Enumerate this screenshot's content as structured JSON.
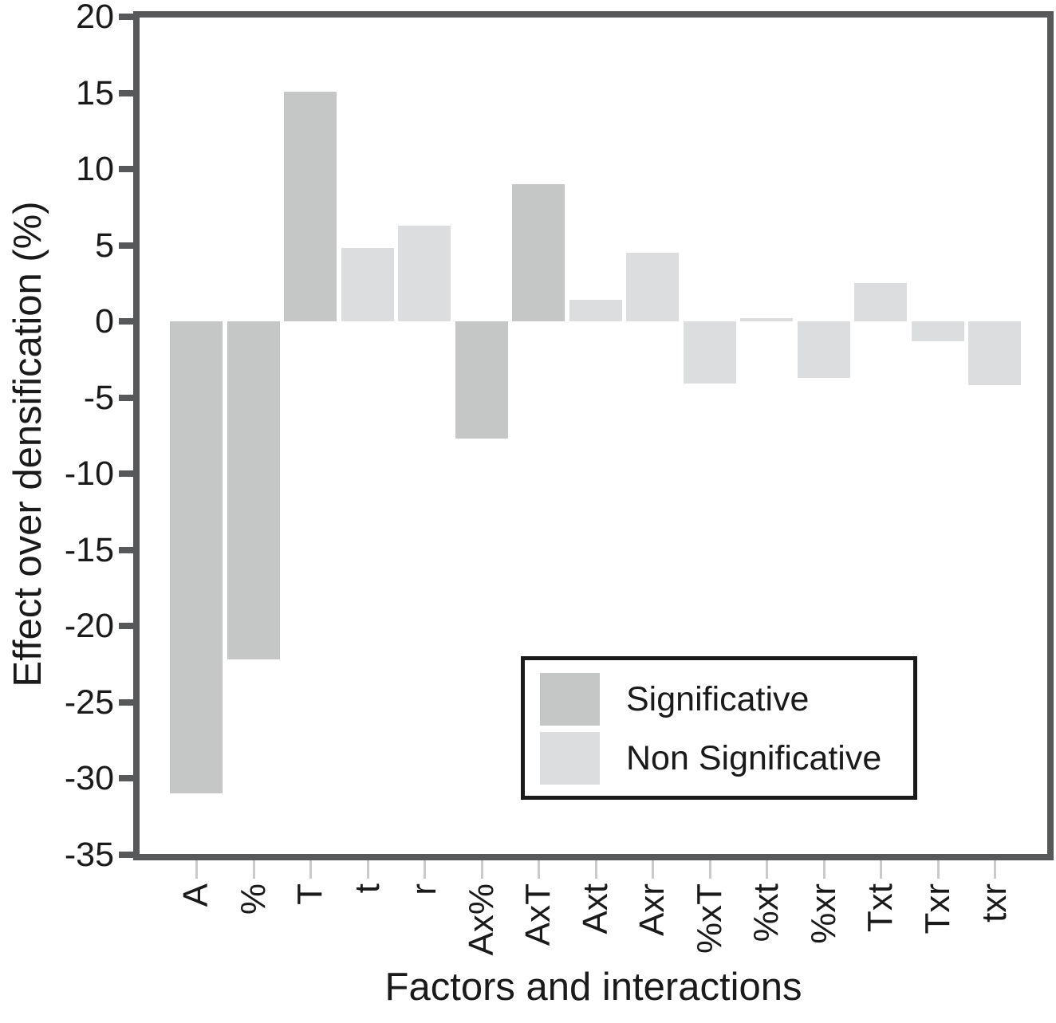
{
  "figure": {
    "y_axis_title": "Effect over densification (%)",
    "x_axis_title": "Factors and interactions",
    "legend": [
      {
        "key": "significative",
        "label": "Significative",
        "color": "#c5c6c6"
      },
      {
        "key": "non_significative",
        "label": "Non Significative",
        "color": "#dcddde"
      }
    ]
  },
  "chart_data": {
    "type": "bar",
    "title": "",
    "xlabel": "Factors and interactions",
    "ylabel": "Effect over densification (%)",
    "ylim": [
      -35,
      20
    ],
    "yticks": [
      20,
      15,
      10,
      5,
      0,
      -5,
      -10,
      -15,
      -20,
      -25,
      -30,
      -35
    ],
    "grid": false,
    "legend_position": "lower-right",
    "categories": [
      "A",
      "%",
      "T",
      "t",
      "r",
      "Ax%",
      "AxT",
      "Axt",
      "Axr",
      "%xT",
      "%xt",
      "%xr",
      "Txt",
      "Txr",
      "txr"
    ],
    "values": [
      -31.0,
      -22.2,
      15.1,
      4.8,
      6.3,
      -7.7,
      9.0,
      1.4,
      4.5,
      -4.1,
      0.2,
      -3.7,
      2.5,
      -1.3,
      -4.2
    ],
    "significance": [
      "significative",
      "significative",
      "significative",
      "non_significative",
      "non_significative",
      "significative",
      "significative",
      "non_significative",
      "non_significative",
      "non_significative",
      "non_significative",
      "non_significative",
      "non_significative",
      "non_significative",
      "non_significative"
    ],
    "colors": {
      "significative": "#c5c6c6",
      "non_significative": "#dcddde",
      "axis": "#57585a",
      "minor_tick": "#c9cacb",
      "text": "#1a1a1a"
    }
  }
}
